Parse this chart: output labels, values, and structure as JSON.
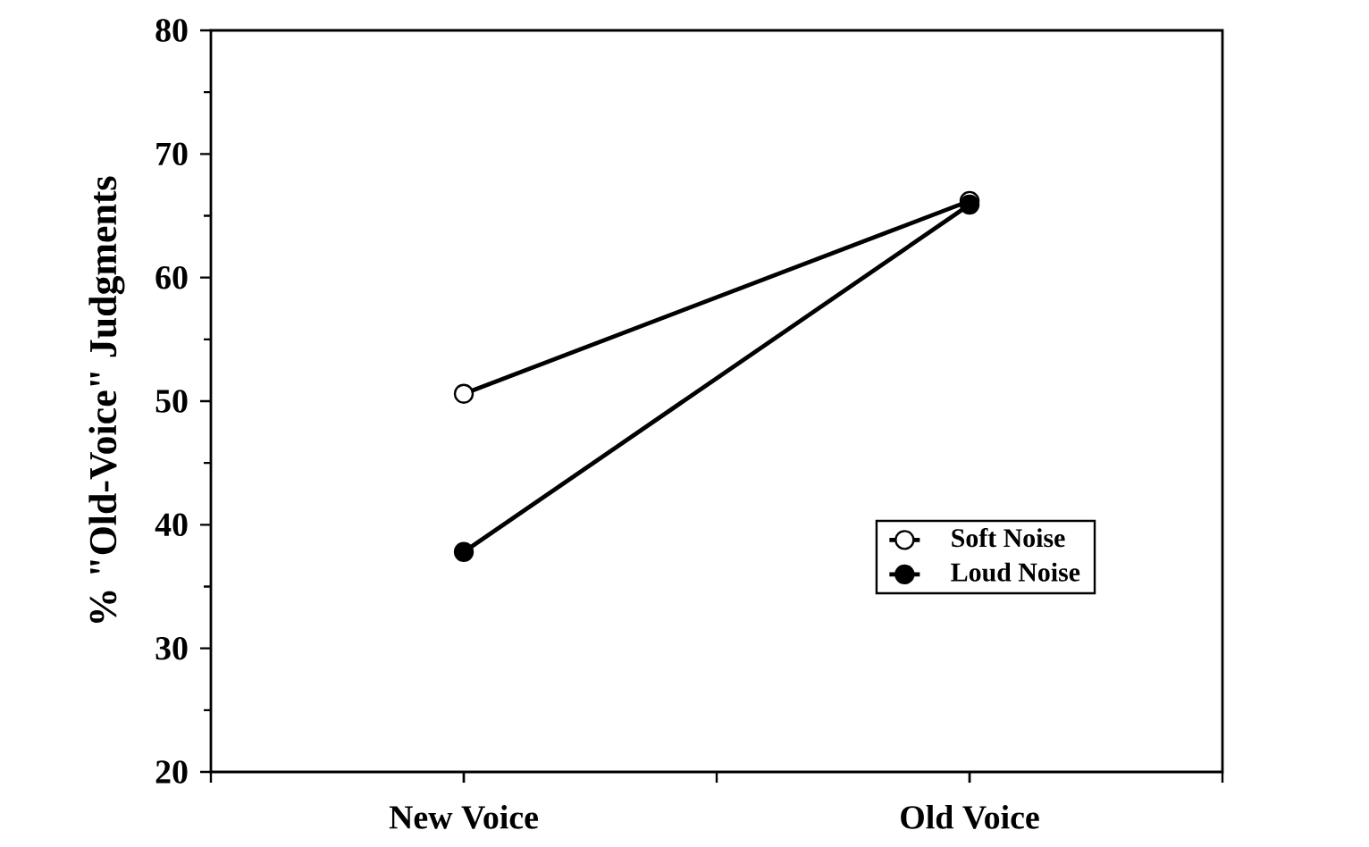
{
  "chart_data": {
    "type": "line",
    "ylabel": "% \"Old-Voice\" Judgments",
    "categories": [
      "New Voice",
      "Old Voice"
    ],
    "series": [
      {
        "name": "Soft Noise",
        "color": "#ffffff",
        "values": [
          50.6,
          66.2
        ]
      },
      {
        "name": "Loud Noise",
        "color": "#000000",
        "values": [
          37.8,
          65.9
        ]
      }
    ],
    "ylim": [
      20,
      80
    ],
    "yticks": [
      20,
      30,
      40,
      50,
      60,
      70,
      80
    ],
    "marker": "circle",
    "line_style": "solid",
    "legend": "right",
    "grid": false
  }
}
